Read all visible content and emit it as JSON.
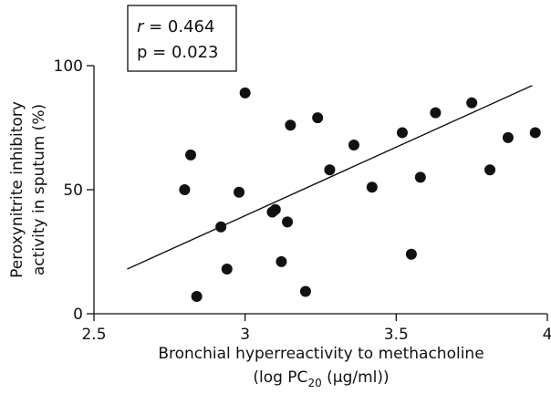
{
  "chart_data": {
    "type": "scatter",
    "xlabel_line1": "Bronchial hyperreactivity to methacholine",
    "xlabel_line2_prefix": "(log PC",
    "xlabel_line2_sub": "20",
    "xlabel_line2_suffix": " (μg/ml))",
    "ylabel_line1": "Peroxynitrite inhibitory",
    "ylabel_line2": "activity in sputum (%)",
    "xlim": [
      2.5,
      4.0
    ],
    "ylim": [
      0,
      100
    ],
    "x_ticks": [
      2.5,
      3.0,
      3.5,
      4.0
    ],
    "x_tick_labels": [
      "2.5",
      "3",
      "3.5",
      "4"
    ],
    "y_ticks": [
      0,
      50,
      100
    ],
    "y_tick_labels": [
      "0",
      "50",
      "100"
    ],
    "stats": {
      "r_symbol": "r",
      "r_value": " = 0.464",
      "p_text": "p = 0.023"
    },
    "regression": {
      "x1": 2.61,
      "y1": 18,
      "x2": 3.95,
      "y2": 92
    },
    "points": [
      {
        "x": 2.8,
        "y": 50
      },
      {
        "x": 2.82,
        "y": 64
      },
      {
        "x": 2.84,
        "y": 7
      },
      {
        "x": 2.92,
        "y": 35
      },
      {
        "x": 2.94,
        "y": 18
      },
      {
        "x": 2.98,
        "y": 49
      },
      {
        "x": 3.0,
        "y": 89
      },
      {
        "x": 3.09,
        "y": 41
      },
      {
        "x": 3.1,
        "y": 42
      },
      {
        "x": 3.12,
        "y": 21
      },
      {
        "x": 3.14,
        "y": 37
      },
      {
        "x": 3.15,
        "y": 76
      },
      {
        "x": 3.2,
        "y": 9
      },
      {
        "x": 3.24,
        "y": 79
      },
      {
        "x": 3.28,
        "y": 58
      },
      {
        "x": 3.36,
        "y": 68
      },
      {
        "x": 3.42,
        "y": 51
      },
      {
        "x": 3.52,
        "y": 73
      },
      {
        "x": 3.55,
        "y": 24
      },
      {
        "x": 3.58,
        "y": 55
      },
      {
        "x": 3.63,
        "y": 81
      },
      {
        "x": 3.75,
        "y": 85
      },
      {
        "x": 3.81,
        "y": 58
      },
      {
        "x": 3.87,
        "y": 71
      },
      {
        "x": 3.96,
        "y": 73
      }
    ]
  }
}
